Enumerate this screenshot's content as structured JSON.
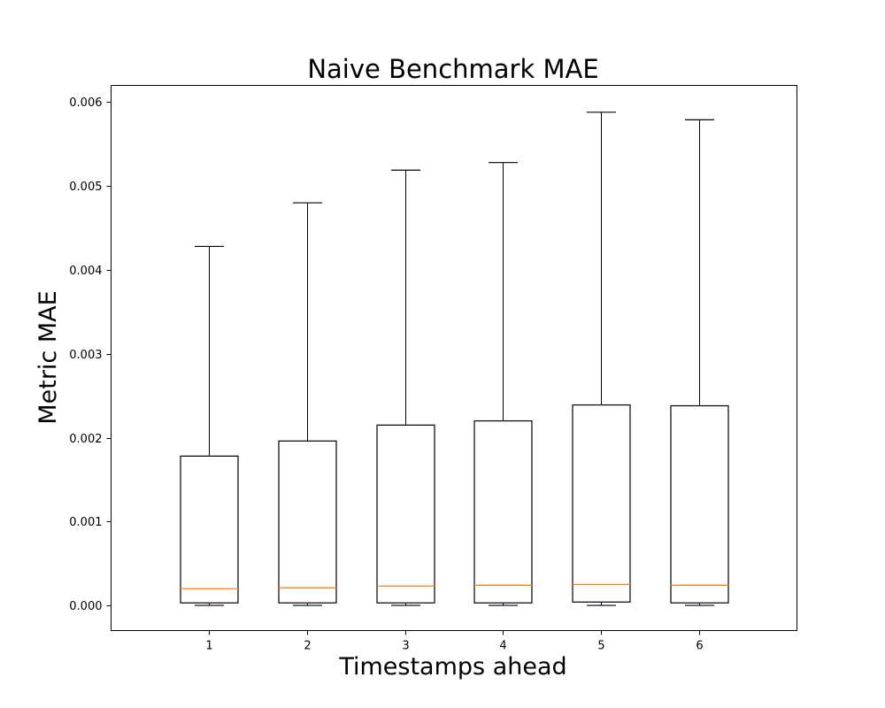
{
  "chart_data": {
    "type": "box",
    "title": "Naive Benchmark MAE",
    "xlabel": "Timestamps ahead",
    "ylabel": "Metric MAE",
    "categories": [
      "1",
      "2",
      "3",
      "4",
      "5",
      "6"
    ],
    "ylim": [
      -0.0003,
      0.0062
    ],
    "yticks": [
      0.0,
      0.001,
      0.002,
      0.003,
      0.004,
      0.005,
      0.006
    ],
    "ytick_labels": [
      "0.000",
      "0.001",
      "0.002",
      "0.003",
      "0.004",
      "0.005",
      "0.006"
    ],
    "boxes": [
      {
        "category": "1",
        "whisker_low": 0.0,
        "q1": 3e-05,
        "median": 0.0002,
        "q3": 0.00178,
        "whisker_high": 0.00428
      },
      {
        "category": "2",
        "whisker_low": 0.0,
        "q1": 3e-05,
        "median": 0.00021,
        "q3": 0.00196,
        "whisker_high": 0.0048
      },
      {
        "category": "3",
        "whisker_low": 0.0,
        "q1": 3e-05,
        "median": 0.00023,
        "q3": 0.00215,
        "whisker_high": 0.00519
      },
      {
        "category": "4",
        "whisker_low": 0.0,
        "q1": 3e-05,
        "median": 0.00024,
        "q3": 0.0022,
        "whisker_high": 0.00528
      },
      {
        "category": "5",
        "whisker_low": 0.0,
        "q1": 4e-05,
        "median": 0.00025,
        "q3": 0.00239,
        "whisker_high": 0.00588
      },
      {
        "category": "6",
        "whisker_low": 0.0,
        "q1": 3e-05,
        "median": 0.00024,
        "q3": 0.00238,
        "whisker_high": 0.00579
      }
    ],
    "grid": false,
    "colors": {
      "box": "#000000",
      "median": "#ff7f0e",
      "axes": "#000000"
    }
  }
}
